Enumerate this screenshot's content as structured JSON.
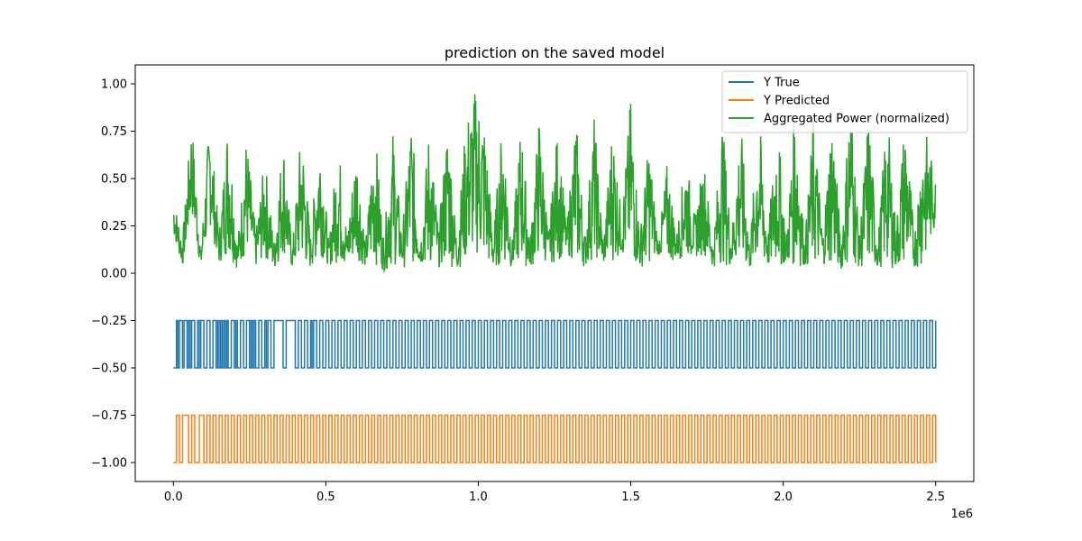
{
  "chart_data": {
    "type": "line",
    "title": "prediction on the saved model",
    "xlabel": "",
    "ylabel": "",
    "x_offset_label": "1e6",
    "xlim": [
      -0.125,
      2.625
    ],
    "ylim": [
      -1.1,
      1.1
    ],
    "x_ticks": [
      0.0,
      0.5,
      1.0,
      1.5,
      2.0,
      2.5
    ],
    "x_tick_labels": [
      "0.0",
      "0.5",
      "1.0",
      "1.5",
      "2.0",
      "2.5"
    ],
    "y_ticks": [
      -1.0,
      -0.75,
      -0.5,
      -0.25,
      0.0,
      0.25,
      0.5,
      0.75,
      1.0
    ],
    "y_tick_labels": [
      "−1.00",
      "−0.75",
      "−0.50",
      "−0.25",
      "0.00",
      "0.25",
      "0.50",
      "0.75",
      "1.00"
    ],
    "x_data_range": [
      0.0,
      2.5
    ],
    "grid": false,
    "legend_position": "top-right",
    "series": [
      {
        "name": "Y True",
        "color": "#1f77b4",
        "kind": "binary-step",
        "low": -0.5,
        "high": -0.25,
        "switch_times_e6": [
          0.01,
          0.015,
          0.02,
          0.03,
          0.035,
          0.045,
          0.05,
          0.055,
          0.06,
          0.07,
          0.08,
          0.085,
          0.09,
          0.1,
          0.11,
          0.12,
          0.13,
          0.14,
          0.145,
          0.15,
          0.155,
          0.16,
          0.165,
          0.17,
          0.175,
          0.18,
          0.19,
          0.2,
          0.205,
          0.21,
          0.22,
          0.23,
          0.24,
          0.25,
          0.255,
          0.26,
          0.265,
          0.27,
          0.28,
          0.29,
          0.3,
          0.305,
          0.31,
          0.32,
          0.33,
          0.36,
          0.37,
          0.4,
          0.41,
          0.42,
          0.43,
          0.44,
          0.45,
          0.455,
          0.46,
          0.47,
          0.48,
          0.49,
          0.5,
          0.51,
          0.52,
          0.53,
          0.54,
          0.55,
          0.56,
          0.57,
          0.58,
          0.59,
          0.6,
          0.61,
          0.62,
          0.63,
          0.64,
          0.65,
          0.66,
          0.67,
          0.68,
          0.69,
          0.7,
          0.71,
          0.72,
          0.73,
          0.74,
          0.75,
          0.76,
          0.77,
          0.78,
          0.79,
          0.8,
          0.81,
          0.82,
          0.83,
          0.84,
          0.85,
          0.86,
          0.87,
          0.88,
          0.89,
          0.9,
          0.91,
          0.92,
          0.93,
          0.94,
          0.95,
          0.96,
          0.97,
          0.98,
          0.99,
          1.0,
          1.01,
          1.02,
          1.03,
          1.04,
          1.05,
          1.06,
          1.07,
          1.08,
          1.09,
          1.1,
          1.11,
          1.12,
          1.13,
          1.14,
          1.15,
          1.16,
          1.17,
          1.18,
          1.19,
          1.2,
          1.21,
          1.22,
          1.23,
          1.24,
          1.25,
          1.26,
          1.27,
          1.28,
          1.29,
          1.3,
          1.31,
          1.32,
          1.33,
          1.34,
          1.35,
          1.36,
          1.37,
          1.38,
          1.39,
          1.4,
          1.41,
          1.42,
          1.43,
          1.44,
          1.45,
          1.46,
          1.47,
          1.48,
          1.49,
          1.5,
          1.51,
          1.52,
          1.53,
          1.54,
          1.55,
          1.56,
          1.57,
          1.58,
          1.59,
          1.6,
          1.61,
          1.62,
          1.63,
          1.64,
          1.65,
          1.66,
          1.67,
          1.68,
          1.69,
          1.7,
          1.71,
          1.72,
          1.73,
          1.74,
          1.75,
          1.76,
          1.77,
          1.78,
          1.79,
          1.8,
          1.81,
          1.82,
          1.83,
          1.84,
          1.85,
          1.86,
          1.87,
          1.88,
          1.89,
          1.9,
          1.91,
          1.92,
          1.93,
          1.94,
          1.95,
          1.96,
          1.97,
          1.98,
          1.99,
          2.0,
          2.01,
          2.02,
          2.03,
          2.04,
          2.05,
          2.06,
          2.07,
          2.08,
          2.09,
          2.1,
          2.11,
          2.12,
          2.13,
          2.14,
          2.15,
          2.16,
          2.17,
          2.18,
          2.19,
          2.2,
          2.21,
          2.22,
          2.23,
          2.24,
          2.25,
          2.26,
          2.27,
          2.28,
          2.29,
          2.3,
          2.31,
          2.32,
          2.33,
          2.34,
          2.35,
          2.36,
          2.37,
          2.38,
          2.39,
          2.4,
          2.41,
          2.42,
          2.43,
          2.44,
          2.45,
          2.46,
          2.47,
          2.48,
          2.49,
          2.5
        ]
      },
      {
        "name": "Y Predicted",
        "color": "#ff7f0e",
        "kind": "binary-step",
        "low": -1.0,
        "high": -0.75,
        "switch_times_e6": [
          0.01,
          0.02,
          0.03,
          0.05,
          0.06,
          0.07,
          0.085,
          0.1,
          0.11,
          0.12,
          0.13,
          0.14,
          0.15,
          0.16,
          0.17,
          0.18,
          0.19,
          0.2,
          0.21,
          0.22,
          0.23,
          0.24,
          0.25,
          0.26,
          0.27,
          0.28,
          0.29,
          0.3,
          0.31,
          0.32,
          0.33,
          0.34,
          0.35,
          0.36,
          0.37,
          0.38,
          0.39,
          0.4,
          0.41,
          0.42,
          0.43,
          0.44,
          0.45,
          0.46,
          0.47,
          0.48,
          0.49,
          0.5,
          0.51,
          0.52,
          0.53,
          0.54,
          0.55,
          0.56,
          0.57,
          0.58,
          0.59,
          0.6,
          0.61,
          0.62,
          0.63,
          0.64,
          0.65,
          0.66,
          0.67,
          0.68,
          0.69,
          0.7,
          0.71,
          0.72,
          0.73,
          0.74,
          0.75,
          0.76,
          0.77,
          0.78,
          0.79,
          0.8,
          0.81,
          0.82,
          0.83,
          0.84,
          0.85,
          0.86,
          0.87,
          0.88,
          0.89,
          0.9,
          0.91,
          0.92,
          0.93,
          0.94,
          0.95,
          0.96,
          0.97,
          0.98,
          0.99,
          1.0,
          1.01,
          1.02,
          1.03,
          1.04,
          1.05,
          1.06,
          1.07,
          1.08,
          1.09,
          1.1,
          1.11,
          1.12,
          1.13,
          1.14,
          1.15,
          1.16,
          1.17,
          1.18,
          1.19,
          1.2,
          1.21,
          1.22,
          1.23,
          1.24,
          1.25,
          1.26,
          1.27,
          1.28,
          1.29,
          1.3,
          1.31,
          1.32,
          1.33,
          1.34,
          1.35,
          1.36,
          1.37,
          1.38,
          1.39,
          1.4,
          1.41,
          1.42,
          1.43,
          1.44,
          1.45,
          1.46,
          1.47,
          1.48,
          1.49,
          1.5,
          1.51,
          1.52,
          1.53,
          1.54,
          1.55,
          1.56,
          1.57,
          1.58,
          1.59,
          1.6,
          1.61,
          1.62,
          1.63,
          1.64,
          1.65,
          1.66,
          1.67,
          1.68,
          1.69,
          1.7,
          1.71,
          1.72,
          1.73,
          1.74,
          1.75,
          1.76,
          1.77,
          1.78,
          1.79,
          1.8,
          1.81,
          1.82,
          1.83,
          1.84,
          1.85,
          1.86,
          1.87,
          1.88,
          1.89,
          1.9,
          1.91,
          1.92,
          1.93,
          1.94,
          1.95,
          1.96,
          1.97,
          1.98,
          1.99,
          2.0,
          2.01,
          2.02,
          2.03,
          2.04,
          2.05,
          2.06,
          2.07,
          2.08,
          2.09,
          2.1,
          2.11,
          2.12,
          2.13,
          2.14,
          2.15,
          2.16,
          2.17,
          2.18,
          2.19,
          2.2,
          2.21,
          2.22,
          2.23,
          2.24,
          2.25,
          2.26,
          2.27,
          2.28,
          2.29,
          2.3,
          2.31,
          2.32,
          2.33,
          2.34,
          2.35,
          2.36,
          2.37,
          2.38,
          2.39,
          2.4,
          2.41,
          2.42,
          2.43,
          2.44,
          2.45,
          2.46,
          2.47,
          2.48,
          2.49,
          2.5
        ]
      },
      {
        "name": "Aggregated Power (normalized)",
        "color": "#2ca02c",
        "kind": "oscillating",
        "x_e6": [
          0.0,
          0.03,
          0.06,
          0.09,
          0.12,
          0.15,
          0.18,
          0.21,
          0.24,
          0.27,
          0.3,
          0.33,
          0.36,
          0.39,
          0.42,
          0.45,
          0.48,
          0.51,
          0.54,
          0.57,
          0.6,
          0.63,
          0.66,
          0.69,
          0.72,
          0.75,
          0.78,
          0.81,
          0.84,
          0.87,
          0.9,
          0.93,
          0.96,
          0.99,
          1.02,
          1.05,
          1.08,
          1.11,
          1.14,
          1.17,
          1.2,
          1.23,
          1.26,
          1.29,
          1.32,
          1.35,
          1.38,
          1.41,
          1.44,
          1.47,
          1.5,
          1.53,
          1.56,
          1.59,
          1.62,
          1.65,
          1.68,
          1.71,
          1.74,
          1.77,
          1.8,
          1.83,
          1.86,
          1.89,
          1.92,
          1.95,
          1.98,
          2.01,
          2.04,
          2.07,
          2.1,
          2.13,
          2.16,
          2.19,
          2.22,
          2.25,
          2.28,
          2.31,
          2.34,
          2.37,
          2.4,
          2.43,
          2.46,
          2.5
        ],
        "upper": [
          0.41,
          0.18,
          0.83,
          0.12,
          0.85,
          0.2,
          0.86,
          0.15,
          0.74,
          0.22,
          0.62,
          0.18,
          0.75,
          0.12,
          0.8,
          0.2,
          0.78,
          0.15,
          0.73,
          0.22,
          0.7,
          0.15,
          0.8,
          0.18,
          0.76,
          0.2,
          0.85,
          0.15,
          0.81,
          0.22,
          0.84,
          0.17,
          0.82,
          0.98,
          0.83,
          0.2,
          0.85,
          0.15,
          0.82,
          0.18,
          0.86,
          0.2,
          0.78,
          0.25,
          0.85,
          0.2,
          0.84,
          0.15,
          0.81,
          0.3,
          0.94,
          0.2,
          0.72,
          0.15,
          0.6,
          0.2,
          0.64,
          0.3,
          0.61,
          0.15,
          0.83,
          0.2,
          0.82,
          0.15,
          0.86,
          0.2,
          0.86,
          0.18,
          0.96,
          0.15,
          0.86,
          0.2,
          0.9,
          0.15,
          1.0,
          0.2,
          0.87,
          0.15,
          0.88,
          0.25,
          0.85,
          0.2,
          0.81,
          0.5
        ],
        "lower": [
          0.2,
          0.03,
          0.3,
          0.02,
          0.25,
          0.05,
          0.1,
          0.02,
          0.1,
          0.03,
          0.08,
          0.01,
          0.1,
          0.03,
          0.05,
          0.02,
          0.1,
          0.04,
          0.05,
          0.02,
          0.08,
          0.03,
          0.05,
          0.01,
          0.04,
          0.03,
          0.03,
          0.05,
          0.02,
          0.03,
          0.04,
          0.02,
          0.05,
          0.1,
          0.04,
          0.02,
          0.05,
          0.03,
          0.05,
          0.02,
          0.08,
          0.05,
          0.06,
          0.1,
          0.05,
          0.03,
          0.08,
          0.05,
          0.06,
          0.1,
          0.05,
          0.03,
          0.05,
          0.1,
          0.05,
          0.07,
          0.08,
          0.08,
          0.1,
          0.03,
          0.05,
          0.03,
          0.05,
          0.02,
          0.05,
          0.03,
          0.02,
          0.05,
          0.03,
          0.04,
          0.02,
          0.05,
          0.03,
          0.02,
          0.05,
          0.03,
          0.02,
          0.03,
          0.04,
          0.02,
          0.04,
          0.03,
          0.03,
          0.25
        ]
      }
    ]
  }
}
